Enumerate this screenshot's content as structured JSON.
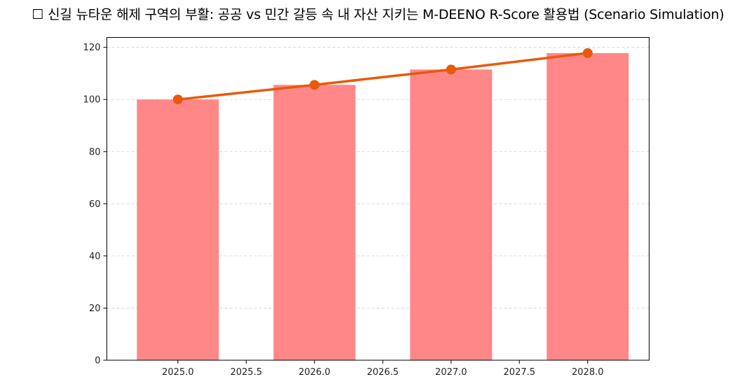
{
  "chart_data": {
    "type": "bar+line",
    "title": "☐ 신길 뉴타운 해제 구역의 부활: 공공 vs 민간 갈등 속 내 자산 지키는 M-DEENO R-Score 활용법 (Scenario Simulation)",
    "xlabel": "",
    "ylabel": "",
    "x": [
      2025.0,
      2026.0,
      2027.0,
      2028.0
    ],
    "series": [
      {
        "name": "bar",
        "type": "bar",
        "color": "#ff8787",
        "values": [
          100,
          105.6,
          111.5,
          117.8
        ]
      },
      {
        "name": "line",
        "type": "line",
        "color": "#e8590c",
        "marker": "circle",
        "values": [
          100,
          105.6,
          111.5,
          117.8
        ]
      }
    ],
    "xlim": [
      2024.48,
      2028.45
    ],
    "ylim": [
      0,
      123.8
    ],
    "xticks": [
      "2025.0",
      "2025.5",
      "2026.0",
      "2026.5",
      "2027.0",
      "2027.5",
      "2028.0"
    ],
    "yticks": [
      "0",
      "20",
      "40",
      "60",
      "80",
      "100",
      "120"
    ],
    "grid": {
      "axis": "y",
      "style": "dashed"
    },
    "legend": null
  },
  "colors": {
    "bar": "#ff8787",
    "line": "#e8590c",
    "grid": "#d0d0d0"
  }
}
